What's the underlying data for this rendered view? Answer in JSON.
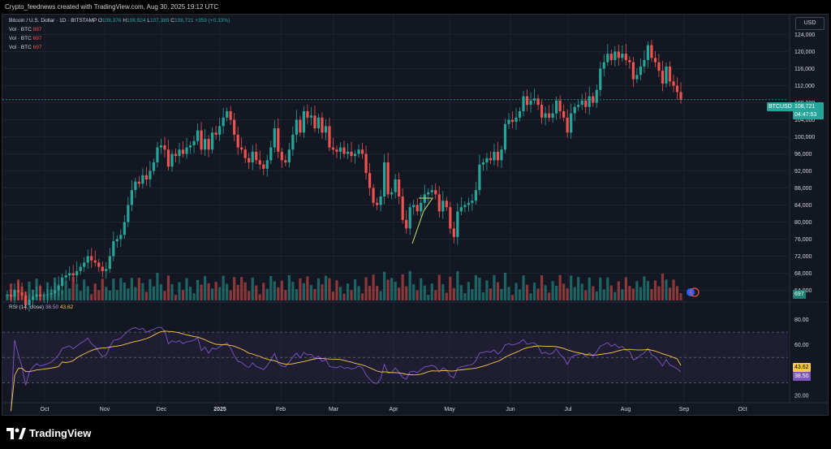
{
  "header": {
    "title": "Crypto_feednews created with TradingView.com, Aug 30, 2025 19:12 UTC"
  },
  "legend": {
    "symbol": "Bitcoin / U.S. Dollar · 1D · BITSTAMP",
    "open_label": "O",
    "open": "108,376",
    "high_label": "H",
    "high": "108,924",
    "low_label": "L",
    "low": "107,389",
    "close_label": "C",
    "close": "108,721",
    "change": "+359 (+0.33%)",
    "vol_lines": [
      {
        "label": "Vol · BTC",
        "value": "697"
      },
      {
        "label": "Vol · BTC",
        "value": "697"
      },
      {
        "label": "Vol · BTC",
        "value": "697"
      }
    ],
    "rsi_label": "RSI (14, close)",
    "rsi_value": "38.50",
    "rsi_ma_value": "43.62"
  },
  "currency_button": "USD",
  "price_tag": {
    "symbol": "BTCUSD",
    "price": "108,721",
    "countdown": "04:47:53"
  },
  "volume_tag": "697",
  "rsi_tags": {
    "ma": "43.62",
    "rsi": "38.50"
  },
  "branding": {
    "logo_text": "TradingView"
  },
  "colors": {
    "background": "#131722",
    "up": "#26a69a",
    "down": "#ef5350",
    "rsi_line": "#7e57c2",
    "rsi_ma": "#f7c948",
    "text": "#d1d4dc"
  },
  "chart_data": [
    {
      "type": "candlestick",
      "title": "Bitcoin / U.S. Dollar · 1D · BITSTAMP",
      "xlabel": "",
      "ylabel": "",
      "x_ticks": [
        "Oct",
        "Nov",
        "Dec",
        "2025",
        "Feb",
        "Mar",
        "Apr",
        "May",
        "Jun",
        "Jul",
        "Aug",
        "Sep",
        "Oct"
      ],
      "y_ticks": [
        "64,000",
        "68,000",
        "72,000",
        "76,000",
        "80,000",
        "84,000",
        "88,000",
        "92,000",
        "96,000",
        "100,000",
        "104,000",
        "108,000",
        "112,000",
        "116,000",
        "120,000",
        "124,000"
      ],
      "ylim": [
        62000,
        126000
      ],
      "last_price": 108721,
      "series": [
        {
          "points": [
            [
              "Oct",
              63000
            ],
            [
              "Oct",
              62500
            ],
            [
              "Oct",
              64000
            ],
            [
              "Oct",
              63500
            ],
            [
              "Oct",
              62800
            ],
            [
              "Oct",
              60500
            ],
            [
              "Oct",
              61800
            ],
            [
              "Oct",
              62500
            ],
            [
              "Oct",
              63000
            ],
            [
              "Oct",
              62600
            ],
            [
              "Oct",
              62800
            ],
            [
              "Oct",
              63000
            ],
            [
              "Oct",
              63300
            ],
            [
              "Oct",
              64000
            ],
            [
              "Oct",
              65000
            ],
            [
              "Oct",
              67000
            ],
            [
              "Oct",
              67500
            ],
            [
              "Oct",
              68000
            ],
            [
              "Oct",
              67500
            ],
            [
              "Oct",
              68500
            ],
            [
              "Oct",
              69500
            ],
            [
              "Oct",
              70500
            ],
            [
              "Oct",
              72000
            ],
            [
              "Oct",
              71000
            ],
            [
              "Oct",
              70500
            ],
            [
              "Oct",
              69500
            ],
            [
              "Oct",
              68500
            ],
            [
              "Nov",
              69000
            ],
            [
              "Nov",
              72000
            ],
            [
              "Nov",
              75500
            ],
            [
              "Nov",
              76000
            ],
            [
              "Nov",
              77000
            ],
            [
              "Nov",
              80000
            ],
            [
              "Nov",
              84000
            ],
            [
              "Nov",
              87500
            ],
            [
              "Nov",
              89500
            ],
            [
              "Nov",
              89000
            ],
            [
              "Nov",
              91000
            ],
            [
              "Nov",
              90000
            ],
            [
              "Nov",
              92000
            ],
            [
              "Nov",
              94000
            ],
            [
              "Nov",
              97500
            ],
            [
              "Nov",
              98000
            ],
            [
              "Nov",
              97000
            ],
            [
              "Nov",
              93000
            ],
            [
              "Nov",
              96000
            ],
            [
              "Nov",
              95500
            ],
            [
              "Nov",
              97000
            ],
            [
              "Nov",
              96000
            ],
            [
              "Dec",
              97500
            ],
            [
              "Dec",
              98000
            ],
            [
              "Dec",
              99000
            ],
            [
              "Dec",
              101500
            ],
            [
              "Dec",
              97000
            ],
            [
              "Dec",
              99500
            ],
            [
              "Dec",
              97000
            ],
            [
              "Dec",
              101000
            ],
            [
              "Dec",
              100500
            ],
            [
              "Dec",
              102500
            ],
            [
              "Dec",
              104500
            ],
            [
              "Dec",
              106000
            ],
            [
              "Dec",
              104000
            ],
            [
              "Dec",
              100500
            ],
            [
              "Dec",
              97500
            ],
            [
              "Dec",
              97000
            ],
            [
              "Dec",
              95000
            ],
            [
              "Dec",
              94000
            ],
            [
              "Dec",
              96500
            ],
            [
              "Dec",
              94500
            ],
            [
              "Dec",
              93500
            ],
            [
              "Dec",
              92500
            ],
            [
              "Jan",
              94500
            ],
            [
              "Jan",
              97500
            ],
            [
              "Jan",
              102000
            ],
            [
              "Jan",
              96500
            ],
            [
              "Jan",
              94500
            ],
            [
              "Jan",
              94000
            ],
            [
              "Jan",
              97000
            ],
            [
              "Jan",
              100500
            ],
            [
              "Jan",
              104000
            ],
            [
              "Jan",
              101000
            ],
            [
              "Jan",
              106000
            ],
            [
              "Jan",
              104500
            ],
            [
              "Jan",
              105000
            ],
            [
              "Jan",
              102000
            ],
            [
              "Jan",
              104500
            ],
            [
              "Jan",
              101000
            ],
            [
              "Jan",
              102500
            ],
            [
              "Feb",
              97500
            ],
            [
              "Feb",
              97000
            ],
            [
              "Feb",
              96500
            ],
            [
              "Feb",
              97500
            ],
            [
              "Feb",
              96000
            ],
            [
              "Feb",
              96500
            ],
            [
              "Feb",
              95500
            ],
            [
              "Feb",
              96000
            ],
            [
              "Feb",
              97000
            ],
            [
              "Feb",
              96000
            ],
            [
              "Feb",
              91500
            ],
            [
              "Feb",
              88000
            ],
            [
              "Feb",
              84500
            ],
            [
              "Feb",
              84000
            ],
            [
              "Mar",
              86000
            ],
            [
              "Mar",
              94000
            ],
            [
              "Mar",
              86500
            ],
            [
              "Mar",
              87000
            ],
            [
              "Mar",
              90000
            ],
            [
              "Mar",
              86000
            ],
            [
              "Mar",
              80500
            ],
            [
              "Mar",
              78500
            ],
            [
              "Mar",
              83500
            ],
            [
              "Mar",
              84000
            ],
            [
              "Mar",
              82500
            ],
            [
              "Mar",
              84500
            ],
            [
              "Mar",
              86500
            ],
            [
              "Mar",
              87000
            ],
            [
              "Mar",
              87500
            ],
            [
              "Mar",
              86500
            ],
            [
              "Mar",
              82500
            ],
            [
              "Apr",
              85000
            ],
            [
              "Apr",
              83500
            ],
            [
              "Apr",
              78500
            ],
            [
              "Apr",
              76500
            ],
            [
              "Apr",
              82500
            ],
            [
              "Apr",
              83500
            ],
            [
              "Apr",
              84000
            ],
            [
              "Apr",
              84500
            ],
            [
              "Apr",
              85000
            ],
            [
              "Apr",
              87500
            ],
            [
              "Apr",
              93500
            ],
            [
              "Apr",
              94000
            ],
            [
              "Apr",
              95000
            ],
            [
              "Apr",
              94500
            ],
            [
              "May",
              96500
            ],
            [
              "May",
              94500
            ],
            [
              "May",
              97000
            ],
            [
              "May",
              103000
            ],
            [
              "May",
              104000
            ],
            [
              "May",
              103500
            ],
            [
              "May",
              104500
            ],
            [
              "May",
              106000
            ],
            [
              "May",
              109500
            ],
            [
              "May",
              107500
            ],
            [
              "May",
              108500
            ],
            [
              "May",
              109000
            ],
            [
              "May",
              107500
            ],
            [
              "May",
              104500
            ],
            [
              "Jun",
              105500
            ],
            [
              "Jun",
              104500
            ],
            [
              "Jun",
              105500
            ],
            [
              "Jun",
              108500
            ],
            [
              "Jun",
              106000
            ],
            [
              "Jun",
              104500
            ],
            [
              "Jun",
              101000
            ],
            [
              "Jun",
              105500
            ],
            [
              "Jun",
              107000
            ],
            [
              "Jun",
              107500
            ],
            [
              "Jun",
              108500
            ],
            [
              "Jun",
              107000
            ],
            [
              "Jul",
              109500
            ],
            [
              "Jul",
              108000
            ],
            [
              "Jul",
              111000
            ],
            [
              "Jul",
              116000
            ],
            [
              "Jul",
              117500
            ],
            [
              "Jul",
              119500
            ],
            [
              "Jul",
              118000
            ],
            [
              "Jul",
              120000
            ],
            [
              "Jul",
              118500
            ],
            [
              "Jul",
              119500
            ],
            [
              "Jul",
              118000
            ],
            [
              "Jul",
              117500
            ],
            [
              "Aug",
              113500
            ],
            [
              "Aug",
              114500
            ],
            [
              "Aug",
              116500
            ],
            [
              "Aug",
              118000
            ],
            [
              "Aug",
              121500
            ],
            [
              "Aug",
              118500
            ],
            [
              "Aug",
              117500
            ],
            [
              "Aug",
              115500
            ],
            [
              "Aug",
              112500
            ],
            [
              "Aug",
              116500
            ],
            [
              "Aug",
              113000
            ],
            [
              "Aug",
              112000
            ],
            [
              "Aug",
              110500
            ],
            [
              "Aug",
              108721
            ]
          ]
        }
      ]
    },
    {
      "type": "bar",
      "title": "Vol · BTC",
      "last_value": 697
    },
    {
      "type": "line",
      "title": "RSI (14, close)",
      "y_ticks": [
        "20.00",
        "40.00",
        "60.00",
        "80.00"
      ],
      "ylim": [
        18,
        90
      ],
      "bands": [
        30,
        50,
        70
      ],
      "series": [
        {
          "name": "RSI",
          "last": 38.5
        },
        {
          "name": "RSI MA",
          "last": 43.62
        }
      ]
    }
  ]
}
